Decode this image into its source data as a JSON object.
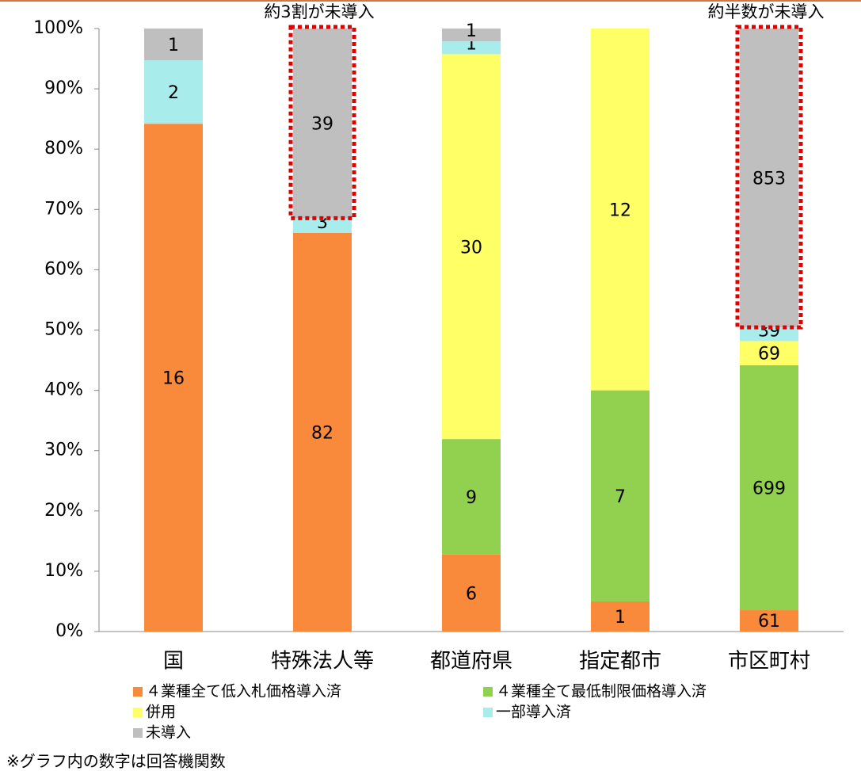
{
  "chart_data": {
    "type": "bar",
    "stacking": "percent",
    "categories": [
      "国",
      "特殊法人等",
      "都道府県",
      "指定都市",
      "市区町村"
    ],
    "series": [
      {
        "name": "４業種全て低入札価格導入済",
        "color": "#f98a3c",
        "values": [
          16,
          82,
          6,
          1,
          61
        ]
      },
      {
        "name": "４業種全て最低制限価格導入済",
        "color": "#92d050",
        "values": [
          null,
          null,
          9,
          7,
          699
        ]
      },
      {
        "name": "併用",
        "color": "#ffff66",
        "values": [
          null,
          null,
          30,
          12,
          69
        ]
      },
      {
        "name": "一部導入済",
        "color": "#a8ecec",
        "values": [
          2,
          3,
          1,
          null,
          39
        ]
      },
      {
        "name": "未導入",
        "color": "#bfbfbf",
        "values": [
          1,
          39,
          1,
          null,
          853
        ]
      }
    ],
    "ylim": [
      0,
      100
    ],
    "yticks": [
      {
        "value": 0,
        "label": "0%"
      },
      {
        "value": 10,
        "label": "10%"
      },
      {
        "value": 20,
        "label": "20%"
      },
      {
        "value": 30,
        "label": "30%"
      },
      {
        "value": 40,
        "label": "40%"
      },
      {
        "value": 50,
        "label": "50%"
      },
      {
        "value": 60,
        "label": "60%"
      },
      {
        "value": 70,
        "label": "70%"
      },
      {
        "value": 80,
        "label": "80%"
      },
      {
        "value": 90,
        "label": "90%"
      },
      {
        "value": 100,
        "label": "100%"
      }
    ],
    "annotations": [
      "約3割が未導入",
      "約半数が未導入"
    ],
    "note": "※グラフ内の数字は回答機関数"
  }
}
